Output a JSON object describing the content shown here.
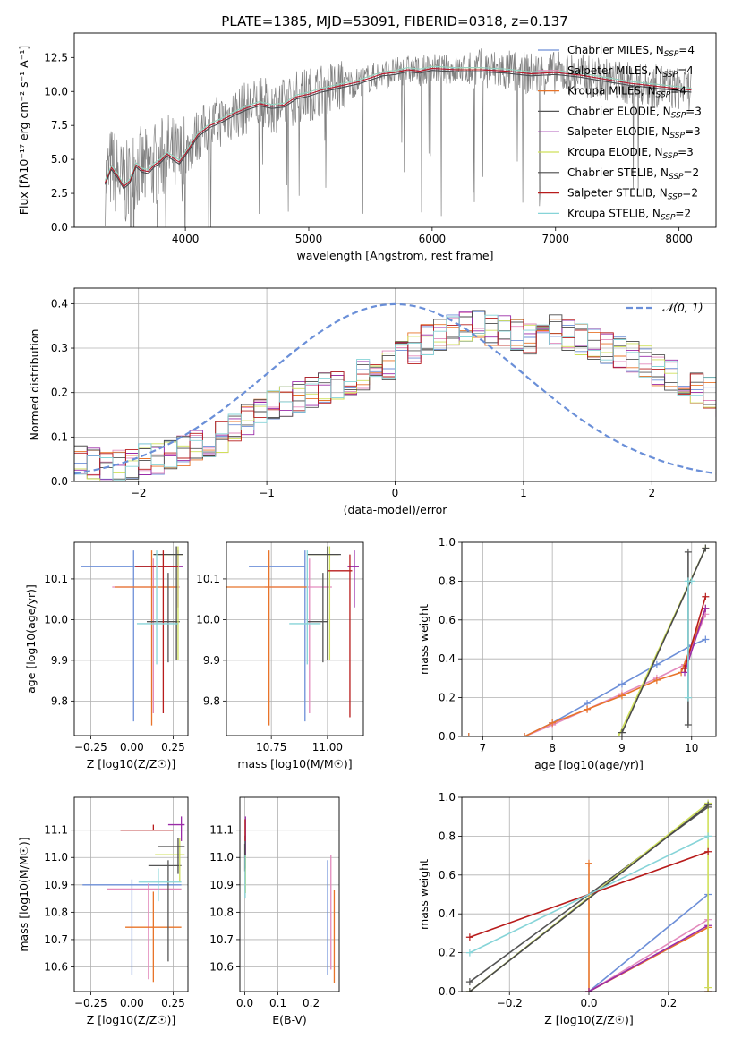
{
  "figure": {
    "title": "PLATE=1385, MJD=53091, FIBERID=0318, z=0.137"
  },
  "chart_data": [
    {
      "id": "spectrum",
      "type": "line",
      "title": "PLATE=1385, MJD=53091, FIBERID=0318, z=0.137",
      "xlabel": "wavelength [Angstrom, rest frame]",
      "ylabel": "Flux [fλ10⁻¹⁷ erg cm⁻² s⁻¹ A⁻¹]",
      "xlim": [
        3100,
        8300
      ],
      "ylim": [
        0,
        14.3
      ],
      "xticks": [
        4000,
        5000,
        6000,
        7000,
        8000
      ],
      "yticks": [
        0.0,
        2.5,
        5.0,
        7.5,
        10.0,
        12.5
      ],
      "grid": false,
      "legend_position": "top-right",
      "legend": [
        {
          "name": "Chabrier MILES, N_SSP=4",
          "color": "#6d8fd8"
        },
        {
          "name": "Salpeter MILES, N_SSP=4",
          "color": "#e38bbd"
        },
        {
          "name": "Kroupa MILES, N_SSP=4",
          "color": "#e8742a"
        },
        {
          "name": "Chabrier ELODIE, N_SSP=3",
          "color": "#555555"
        },
        {
          "name": "Salpeter ELODIE, N_SSP=3",
          "color": "#9a2ba8"
        },
        {
          "name": "Kroupa ELODIE, N_SSP=3",
          "color": "#cfe05a"
        },
        {
          "name": "Chabrier STELIB, N_SSP=2",
          "color": "#4a4a4a"
        },
        {
          "name": "Salpeter STELIB, N_SSP=2",
          "color": "#b81c1c"
        },
        {
          "name": "Kroupa STELIB, N_SSP=2",
          "color": "#86d4d8"
        }
      ],
      "data_color": "#808080",
      "model_x": [
        3350,
        3400,
        3450,
        3500,
        3550,
        3600,
        3650,
        3700,
        3750,
        3800,
        3850,
        3900,
        3950,
        4000,
        4100,
        4200,
        4300,
        4400,
        4500,
        4600,
        4700,
        4800,
        4900,
        5000,
        5100,
        5200,
        5300,
        5400,
        5500,
        5600,
        5700,
        5800,
        5900,
        6000,
        6200,
        6400,
        6600,
        6800,
        7000,
        7200,
        7400,
        7600,
        7800,
        8000,
        8100
      ],
      "model_y": [
        3.3,
        4.4,
        3.8,
        3.0,
        3.4,
        4.6,
        4.2,
        4.1,
        4.6,
        4.9,
        5.4,
        5.1,
        4.8,
        5.4,
        6.8,
        7.5,
        7.9,
        8.4,
        8.8,
        9.1,
        8.9,
        9.0,
        9.6,
        9.8,
        10.1,
        10.3,
        10.5,
        10.7,
        11.0,
        11.3,
        11.4,
        11.6,
        11.5,
        11.7,
        11.6,
        11.6,
        11.5,
        11.3,
        11.4,
        11.2,
        10.9,
        10.6,
        10.4,
        10.2,
        10.1
      ]
    },
    {
      "id": "residuals",
      "type": "histogram",
      "xlabel": "(data-model)/error",
      "ylabel": "Normed distribution",
      "xlim": [
        -2.5,
        2.5
      ],
      "ylim": [
        0,
        0.435
      ],
      "xticks": [
        -2,
        -1,
        0,
        1,
        2
      ],
      "yticks": [
        0.0,
        0.1,
        0.2,
        0.3,
        0.4
      ],
      "grid": true,
      "legend_position": "top-right",
      "reference_curve": {
        "name": "𝒩(0, 1)",
        "color": "#6a8fd8",
        "mean": 0,
        "sigma": 1
      },
      "bin_width": 0.1,
      "bin_start": -2.5,
      "histogram_base": [
        0.05,
        0.04,
        0.03,
        0.035,
        0.04,
        0.05,
        0.05,
        0.06,
        0.07,
        0.08,
        0.09,
        0.1,
        0.12,
        0.14,
        0.15,
        0.17,
        0.18,
        0.19,
        0.2,
        0.21,
        0.22,
        0.23,
        0.24,
        0.25,
        0.26,
        0.28,
        0.3,
        0.32,
        0.33,
        0.34,
        0.35,
        0.35,
        0.34,
        0.34,
        0.33,
        0.32,
        0.33,
        0.34,
        0.33,
        0.32,
        0.31,
        0.3,
        0.29,
        0.28,
        0.27,
        0.25,
        0.24,
        0.22,
        0.21,
        0.2,
        0.18,
        0.16,
        0.15,
        0.13,
        0.12,
        0.11,
        0.1,
        0.09,
        0.08,
        0.07,
        0.06,
        0.06,
        0.05,
        0.05,
        0.04,
        0.04,
        0.04,
        0.04,
        0.03,
        0.03,
        0.03,
        0.03,
        0.03,
        0.03,
        0.03,
        0.03,
        0.03,
        0.02,
        0.02,
        0.02
      ],
      "series_colors": [
        "#6d8fd8",
        "#e38bbd",
        "#e8742a",
        "#555555",
        "#9a2ba8",
        "#cfe05a",
        "#4a4a4a",
        "#b81c1c",
        "#86d4d8"
      ]
    },
    {
      "id": "age_vs_Z",
      "type": "errorbar",
      "xlabel": "Z [log10(Z/Z☉)]",
      "ylabel": "age  [log10(age/yr)]",
      "xlim": [
        -0.35,
        0.34
      ],
      "ylim": [
        9.715,
        10.19
      ],
      "xticks": [
        -0.25,
        0.0,
        0.25
      ],
      "yticks": [
        9.8,
        9.9,
        10.0,
        10.1
      ],
      "grid": true,
      "points": [
        {
          "color": "#6d8fd8",
          "x": 0.01,
          "xerr": [
            0.32,
            0.25
          ],
          "y": 10.13,
          "yerr": [
            0.38,
            0.04
          ]
        },
        {
          "color": "#e38bbd",
          "x": 0.13,
          "xerr": [
            0.25,
            0.16
          ],
          "y": 10.08,
          "yerr": [
            0.31,
            0.07
          ]
        },
        {
          "color": "#e8742a",
          "x": 0.12,
          "xerr": [
            0.22,
            0.16
          ],
          "y": 10.08,
          "yerr": [
            0.34,
            0.09
          ]
        },
        {
          "color": "#555555",
          "x": 0.22,
          "xerr": [
            0.13,
            0.07
          ],
          "y": 9.995,
          "yerr": [
            0.1,
            0.12
          ]
        },
        {
          "color": "#9a2ba8",
          "x": 0.28,
          "xerr": [
            0.08,
            0.03
          ],
          "y": 10.13,
          "yerr": [
            0.1,
            0.04
          ]
        },
        {
          "color": "#cfe05a",
          "x": 0.28,
          "xerr": [
            0.14,
            0.03
          ],
          "y": 10.16,
          "yerr": [
            0.26,
            0.02
          ]
        },
        {
          "color": "#4a4a4a",
          "x": 0.27,
          "xerr": [
            0.14,
            0.04
          ],
          "y": 10.16,
          "yerr": [
            0.26,
            0.02
          ]
        },
        {
          "color": "#b81c1c",
          "x": 0.19,
          "xerr": [
            0.17,
            0.09
          ],
          "y": 10.13,
          "yerr": [
            0.36,
            0.04
          ]
        },
        {
          "color": "#86d4d8",
          "x": 0.15,
          "xerr": [
            0.12,
            0.13
          ],
          "y": 9.99,
          "yerr": [
            0.1,
            0.18
          ]
        }
      ]
    },
    {
      "id": "age_vs_mass",
      "type": "errorbar",
      "xlabel": "mass [log10(M/M☉)]",
      "ylabel": "",
      "xlim": [
        10.55,
        11.16
      ],
      "ylim": [
        9.715,
        10.19
      ],
      "xticks": [
        10.75,
        11.0
      ],
      "yticks": [
        9.8,
        9.9,
        10.0,
        10.1
      ],
      "grid": true,
      "points": [
        {
          "color": "#6d8fd8",
          "x": 10.9,
          "xerr": [
            0.25,
            0.0
          ],
          "y": 10.13,
          "yerr": [
            0.38,
            0.04
          ]
        },
        {
          "color": "#e38bbd",
          "x": 10.92,
          "xerr": [
            0.2,
            0.1
          ],
          "y": 10.08,
          "yerr": [
            0.31,
            0.07
          ]
        },
        {
          "color": "#e8742a",
          "x": 10.74,
          "xerr": [
            0.23,
            0.17
          ],
          "y": 10.08,
          "yerr": [
            0.34,
            0.09
          ]
        },
        {
          "color": "#555555",
          "x": 10.98,
          "xerr": [
            0.07,
            0.02
          ],
          "y": 9.995,
          "yerr": [
            0.1,
            0.12
          ]
        },
        {
          "color": "#9a2ba8",
          "x": 11.12,
          "xerr": [
            0.03,
            0.02
          ],
          "y": 10.13,
          "yerr": [
            0.1,
            0.04
          ]
        },
        {
          "color": "#cfe05a",
          "x": 11.01,
          "xerr": [
            0.1,
            0.04
          ],
          "y": 10.16,
          "yerr": [
            0.26,
            0.02
          ]
        },
        {
          "color": "#4a4a4a",
          "x": 11.0,
          "xerr": [
            0.09,
            0.06
          ],
          "y": 10.16,
          "yerr": [
            0.26,
            0.02
          ]
        },
        {
          "color": "#b81c1c",
          "x": 11.1,
          "xerr": [
            0.1,
            0.01
          ],
          "y": 10.12,
          "yerr": [
            0.36,
            0.04
          ]
        },
        {
          "color": "#86d4d8",
          "x": 10.91,
          "xerr": [
            0.08,
            0.06
          ],
          "y": 9.99,
          "yerr": [
            0.1,
            0.18
          ]
        }
      ]
    },
    {
      "id": "weight_vs_age",
      "type": "line",
      "xlabel": "age  [log10(age/yr)]",
      "ylabel": "mass weight",
      "xlim": [
        6.7,
        10.35
      ],
      "ylim": [
        0,
        1
      ],
      "xticks": [
        7,
        8,
        9,
        10
      ],
      "yticks": [
        0.0,
        0.2,
        0.4,
        0.6,
        0.8,
        1.0
      ],
      "grid": true,
      "series": [
        {
          "color": "#6d8fd8",
          "x": [
            6.8,
            7.6,
            8.0,
            8.5,
            9.0,
            9.5,
            10.0,
            10.2
          ],
          "y": [
            0.0,
            0.0,
            0.07,
            0.17,
            0.27,
            0.37,
            0.47,
            0.5
          ]
        },
        {
          "color": "#e38bbd",
          "x": [
            7.6,
            8.0,
            8.5,
            9.0,
            9.5,
            9.9,
            10.2
          ],
          "y": [
            0.0,
            0.06,
            0.14,
            0.22,
            0.3,
            0.37,
            0.63
          ]
        },
        {
          "color": "#e8742a",
          "x": [
            6.8,
            7.6,
            8.0,
            8.5,
            9.0,
            9.5,
            9.85,
            10.2
          ],
          "y": [
            0.0,
            0.0,
            0.07,
            0.14,
            0.21,
            0.29,
            0.33,
            0.66
          ]
        },
        {
          "color": "#555555",
          "x": [
            9.95,
            9.95
          ],
          "y": [
            0.06,
            0.95
          ]
        },
        {
          "color": "#9a2ba8",
          "x": [
            9.9,
            10.2
          ],
          "y": [
            0.33,
            0.66
          ]
        },
        {
          "color": "#cfe05a",
          "x": [
            8.95,
            10.2
          ],
          "y": [
            0.0,
            0.97
          ]
        },
        {
          "color": "#4a4a4a",
          "x": [
            9.0,
            10.2
          ],
          "y": [
            0.02,
            0.97
          ]
        },
        {
          "color": "#b81c1c",
          "x": [
            9.9,
            10.2
          ],
          "y": [
            0.35,
            0.72
          ]
        },
        {
          "color": "#86d4d8",
          "x": [
            9.95,
            9.95,
            10.0
          ],
          "y": [
            0.2,
            0.8,
            0.8
          ]
        }
      ]
    },
    {
      "id": "mass_vs_Z",
      "type": "errorbar",
      "xlabel": "Z [log10(Z/Z☉)]",
      "ylabel": "mass [log10(M/M☉)]",
      "xlim": [
        -0.35,
        0.34
      ],
      "ylim": [
        10.51,
        11.22
      ],
      "xticks": [
        -0.25,
        0.0,
        0.25
      ],
      "yticks": [
        10.6,
        10.7,
        10.8,
        10.9,
        11.0,
        11.1
      ],
      "grid": true,
      "points": [
        {
          "color": "#6d8fd8",
          "x": 0.0,
          "xerr": [
            0.3,
            0.3
          ],
          "y": 10.9,
          "yerr": [
            0.33,
            0.02
          ]
        },
        {
          "color": "#e38bbd",
          "x": 0.1,
          "xerr": [
            0.25,
            0.2
          ],
          "y": 10.885,
          "yerr": [
            0.33,
            0.02
          ]
        },
        {
          "color": "#e8742a",
          "x": 0.13,
          "xerr": [
            0.17,
            0.17
          ],
          "y": 10.745,
          "yerr": [
            0.2,
            0.13
          ]
        },
        {
          "color": "#555555",
          "x": 0.22,
          "xerr": [
            0.12,
            0.08
          ],
          "y": 10.97,
          "yerr": [
            0.35,
            0.02
          ]
        },
        {
          "color": "#9a2ba8",
          "x": 0.3,
          "xerr": [
            0.08,
            0.02
          ],
          "y": 11.12,
          "yerr": [
            0.06,
            0.03
          ]
        },
        {
          "color": "#cfe05a",
          "x": 0.29,
          "xerr": [
            0.15,
            0.03
          ],
          "y": 11.01,
          "yerr": [
            0.1,
            0.06
          ]
        },
        {
          "color": "#4a4a4a",
          "x": 0.28,
          "xerr": [
            0.12,
            0.04
          ],
          "y": 11.04,
          "yerr": [
            0.1,
            0.03
          ]
        },
        {
          "color": "#b81c1c",
          "x": 0.13,
          "xerr": [
            0.2,
            0.12
          ],
          "y": 11.1,
          "yerr": [
            0.0,
            0.02
          ]
        },
        {
          "color": "#86d4d8",
          "x": 0.16,
          "xerr": [
            0.12,
            0.14
          ],
          "y": 10.91,
          "yerr": [
            0.07,
            0.05
          ]
        }
      ]
    },
    {
      "id": "mass_vs_EBV",
      "type": "errorbar",
      "xlabel": "E(B-V)",
      "ylabel": "",
      "xlim": [
        -0.015,
        0.285
      ],
      "ylim": [
        10.51,
        11.22
      ],
      "xticks": [
        0.0,
        0.1,
        0.2
      ],
      "yticks": [
        10.6,
        10.7,
        10.8,
        10.9,
        11.0,
        11.1
      ],
      "grid": true,
      "points": [
        {
          "color": "#6d8fd8",
          "x": 0.25,
          "y": 10.78,
          "yerr": [
            0.21,
            0.21
          ]
        },
        {
          "color": "#e38bbd",
          "x": 0.26,
          "y": 10.8,
          "yerr": [
            0.21,
            0.21
          ]
        },
        {
          "color": "#e8742a",
          "x": 0.27,
          "y": 10.71,
          "yerr": [
            0.17,
            0.17
          ]
        },
        {
          "color": "#555555",
          "x": 0.0,
          "y": 11.0,
          "yerr": [
            0.05,
            0.05
          ]
        },
        {
          "color": "#9a2ba8",
          "x": 0.002,
          "y": 11.08,
          "yerr": [
            0.07,
            0.07
          ]
        },
        {
          "color": "#cfe05a",
          "x": 0.002,
          "y": 10.94,
          "yerr": [
            0.07,
            0.07
          ]
        },
        {
          "color": "#4a4a4a",
          "x": 0.001,
          "y": 11.02,
          "yerr": [
            0.06,
            0.06
          ]
        },
        {
          "color": "#b81c1c",
          "x": 0.001,
          "y": 11.1,
          "yerr": [
            0.04,
            0.04
          ]
        },
        {
          "color": "#86d4d8",
          "x": 0.001,
          "y": 10.93,
          "yerr": [
            0.08,
            0.08
          ]
        }
      ]
    },
    {
      "id": "weight_vs_Z",
      "type": "line",
      "xlabel": "Z [log10(Z/Z☉)]",
      "ylabel": "mass weight",
      "xlim": [
        -0.32,
        0.32
      ],
      "ylim": [
        0,
        1
      ],
      "xticks": [
        -0.2,
        0.0,
        0.2
      ],
      "yticks": [
        0.0,
        0.2,
        0.4,
        0.6,
        0.8,
        1.0
      ],
      "grid": true,
      "series": [
        {
          "color": "#6d8fd8",
          "x": [
            0.0,
            0.3,
            0.3
          ],
          "y": [
            0.0,
            0.5,
            0.0
          ]
        },
        {
          "color": "#e38bbd",
          "x": [
            0.0,
            0.3
          ],
          "y": [
            0.0,
            0.37
          ]
        },
        {
          "color": "#e8742a",
          "x": [
            0.0,
            0.0,
            0.3,
            0.3
          ],
          "y": [
            0.66,
            0.0,
            0.33,
            0.0
          ]
        },
        {
          "color": "#555555",
          "x": [
            -0.3,
            0.3
          ],
          "y": [
            0.05,
            0.95
          ]
        },
        {
          "color": "#9a2ba8",
          "x": [
            0.0,
            0.3
          ],
          "y": [
            0.0,
            0.34
          ]
        },
        {
          "color": "#cfe05a",
          "x": [
            -0.3,
            0.3,
            0.3
          ],
          "y": [
            0.0,
            0.97,
            0.02
          ]
        },
        {
          "color": "#4a4a4a",
          "x": [
            -0.3,
            0.3
          ],
          "y": [
            0.0,
            0.96
          ]
        },
        {
          "color": "#b81c1c",
          "x": [
            -0.3,
            0.3
          ],
          "y": [
            0.28,
            0.72
          ]
        },
        {
          "color": "#86d4d8",
          "x": [
            -0.3,
            0.3
          ],
          "y": [
            0.2,
            0.8
          ]
        }
      ]
    }
  ]
}
